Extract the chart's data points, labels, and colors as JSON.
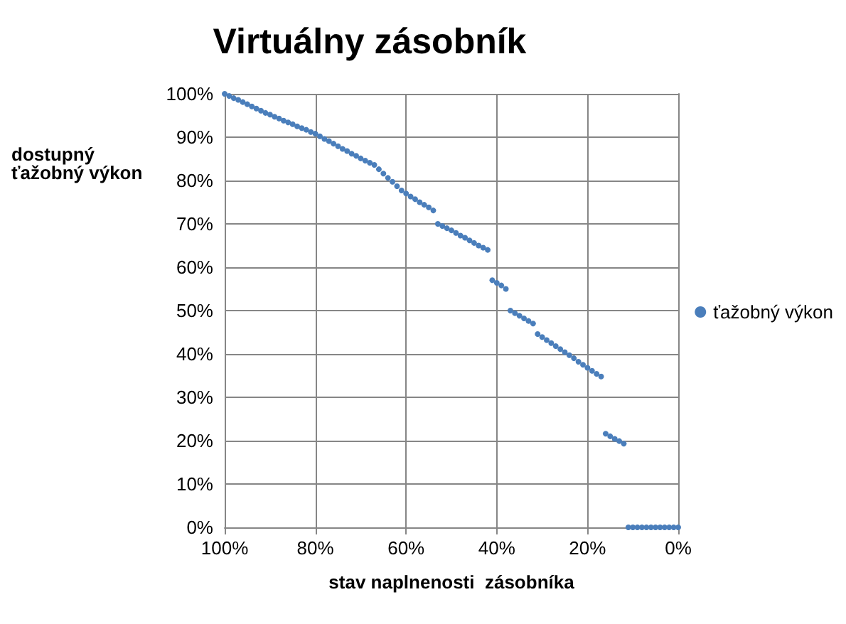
{
  "chart_data": {
    "type": "scatter",
    "title": "Virtuálny zásobník",
    "xlabel": "stav naplnenosti  zásobníka",
    "ylabel": "dostupný\nťažobný výkon",
    "x": [
      100,
      99,
      98,
      97,
      96,
      95,
      94,
      93,
      92,
      91,
      90,
      89,
      88,
      87,
      86,
      85,
      84,
      83,
      82,
      81,
      80,
      79,
      78,
      77,
      76,
      75,
      74,
      73,
      72,
      71,
      70,
      69,
      68,
      67,
      66,
      65,
      64,
      63,
      62,
      61,
      60,
      59,
      58,
      57,
      56,
      55,
      54,
      53,
      52,
      51,
      50,
      49,
      48,
      47,
      46,
      45,
      44,
      43,
      42,
      41,
      40,
      39,
      38,
      37,
      36,
      35,
      34,
      33,
      32,
      31,
      30,
      29,
      28,
      27,
      26,
      25,
      24,
      23,
      22,
      21,
      20,
      19,
      18,
      17,
      16,
      15,
      14,
      13,
      12,
      11,
      10,
      9,
      8,
      7,
      6,
      5,
      4,
      3,
      2,
      1,
      0
    ],
    "series": [
      {
        "name": "ťažobný výkon",
        "color": "#4a7ebb",
        "values": [
          100,
          99.5,
          99,
          98.6,
          98.1,
          97.6,
          97.1,
          96.6,
          96.1,
          95.6,
          95.2,
          94.7,
          94.3,
          93.8,
          93.4,
          93,
          92.5,
          92.1,
          91.7,
          91.2,
          90.8,
          90.2,
          89.6,
          89.1,
          88.5,
          87.9,
          87.3,
          86.8,
          86.2,
          85.7,
          85.1,
          84.6,
          84.1,
          83.6,
          82.6,
          81.6,
          80.6,
          79.7,
          78.7,
          77.7,
          77,
          76.3,
          75.7,
          75,
          74.4,
          73.8,
          73.1,
          70,
          69.5,
          69,
          68.5,
          67.9,
          67.3,
          66.8,
          66.2,
          65.6,
          65,
          64.5,
          64,
          57,
          56.4,
          55.8,
          55,
          50,
          49.4,
          48.8,
          48.2,
          47.6,
          47,
          44.6,
          43.9,
          43.2,
          42.5,
          41.8,
          41.1,
          40.4,
          39.7,
          39,
          38.2,
          37.5,
          36.8,
          36.1,
          35.4,
          34.8,
          21.6,
          21,
          20.4,
          19.9,
          19.3,
          0,
          0,
          0,
          0,
          0,
          0,
          0,
          0,
          0,
          0,
          0,
          0
        ]
      }
    ],
    "xlim": [
      100,
      0
    ],
    "xticks": [
      {
        "value": 100,
        "label": "100%"
      },
      {
        "value": 80,
        "label": "80%"
      },
      {
        "value": 60,
        "label": "60%"
      },
      {
        "value": 40,
        "label": "40%"
      },
      {
        "value": 20,
        "label": "20%"
      },
      {
        "value": 0,
        "label": "0%"
      }
    ],
    "ylim": [
      0,
      100
    ],
    "yticks": [
      {
        "value": 0,
        "label": "0%"
      },
      {
        "value": 10,
        "label": "10%"
      },
      {
        "value": 20,
        "label": "20%"
      },
      {
        "value": 30,
        "label": "30%"
      },
      {
        "value": 40,
        "label": "40%"
      },
      {
        "value": 50,
        "label": "50%"
      },
      {
        "value": 60,
        "label": "60%"
      },
      {
        "value": 70,
        "label": "70%"
      },
      {
        "value": 80,
        "label": "80%"
      },
      {
        "value": 90,
        "label": "90%"
      },
      {
        "value": 100,
        "label": "100%"
      }
    ],
    "grid": true,
    "legend": "right",
    "marker": "circle"
  }
}
